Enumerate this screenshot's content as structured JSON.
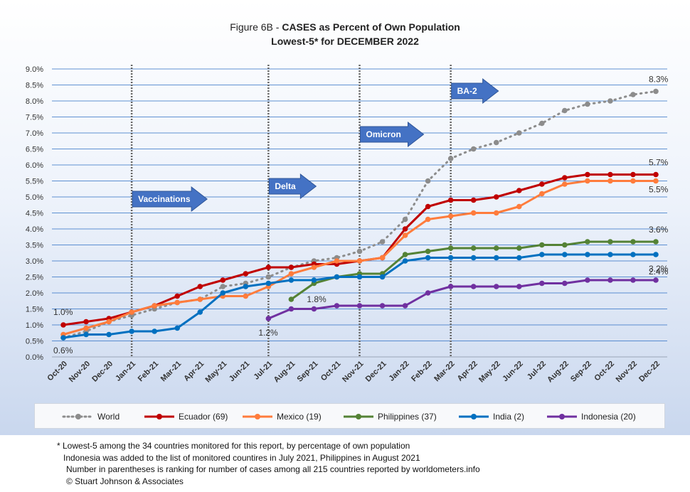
{
  "chart_data": {
    "type": "line",
    "title_prefix": "Figure 6B - ",
    "title_bold": "CASES as Percent of Own Population",
    "subtitle": "Lowest-5* for DECEMBER 2022",
    "categories": [
      "Oct-20",
      "Nov-20",
      "Dec-20",
      "Jan-21",
      "Feb-21",
      "Mar-21",
      "Apr-21",
      "May-21",
      "Jun-21",
      "Jul-21",
      "Aug-21",
      "Sep-21",
      "Oct-21",
      "Nov-21",
      "Dec-21",
      "Jan-22",
      "Feb-22",
      "Mar-22",
      "Apr-22",
      "May-22",
      "Jun-22",
      "Jul-22",
      "Aug-22",
      "Sep-22",
      "Oct-22",
      "Nov-22",
      "Dec-22"
    ],
    "ylim": [
      0,
      9
    ],
    "y_ticks": [
      "0.0%",
      "0.5%",
      "1.0%",
      "1.5%",
      "2.0%",
      "2.5%",
      "3.0%",
      "3.5%",
      "4.0%",
      "4.5%",
      "5.0%",
      "5.5%",
      "6.0%",
      "6.5%",
      "7.0%",
      "7.5%",
      "8.0%",
      "8.5%",
      "9.0%"
    ],
    "grid": true,
    "legend_position": "bottom",
    "series": [
      {
        "name": "World",
        "color": "#8c8c8c",
        "style": "dotted",
        "values": [
          0.6,
          0.8,
          1.1,
          1.3,
          1.5,
          1.7,
          1.8,
          2.2,
          2.3,
          2.5,
          2.8,
          3.0,
          3.1,
          3.3,
          3.6,
          4.3,
          5.5,
          6.2,
          6.5,
          6.7,
          7.0,
          7.3,
          7.7,
          7.9,
          8.0,
          8.2,
          8.3
        ]
      },
      {
        "name": "Ecuador (69)",
        "color": "#c00000",
        "style": "solid",
        "values": [
          1.0,
          1.1,
          1.2,
          1.4,
          1.6,
          1.9,
          2.2,
          2.4,
          2.6,
          2.8,
          2.8,
          2.9,
          2.9,
          3.0,
          3.1,
          4.0,
          4.7,
          4.9,
          4.9,
          5.0,
          5.2,
          5.4,
          5.6,
          5.7,
          5.7,
          5.7,
          5.7
        ]
      },
      {
        "name": "Mexico (19)",
        "color": "#ff7c3c",
        "style": "solid",
        "values": [
          0.7,
          0.9,
          1.1,
          1.4,
          1.6,
          1.7,
          1.8,
          1.9,
          1.9,
          2.2,
          2.6,
          2.8,
          3.0,
          3.0,
          3.1,
          3.8,
          4.3,
          4.4,
          4.5,
          4.5,
          4.7,
          5.1,
          5.4,
          5.5,
          5.5,
          5.5,
          5.5
        ]
      },
      {
        "name": "Philippines (37)",
        "color": "#548235",
        "style": "solid",
        "values": [
          null,
          null,
          null,
          null,
          null,
          null,
          null,
          null,
          null,
          null,
          1.8,
          2.3,
          2.5,
          2.6,
          2.6,
          3.2,
          3.3,
          3.4,
          3.4,
          3.4,
          3.4,
          3.5,
          3.5,
          3.6,
          3.6,
          3.6,
          3.6
        ]
      },
      {
        "name": "India (2)",
        "color": "#0070c0",
        "style": "solid",
        "values": [
          0.6,
          0.7,
          0.7,
          0.8,
          0.8,
          0.9,
          1.4,
          2.0,
          2.2,
          2.3,
          2.4,
          2.4,
          2.5,
          2.5,
          2.5,
          3.0,
          3.1,
          3.1,
          3.1,
          3.1,
          3.1,
          3.2,
          3.2,
          3.2,
          3.2,
          3.2,
          3.2
        ]
      },
      {
        "name": "Indonesia (20)",
        "color": "#7030a0",
        "style": "solid",
        "values": [
          null,
          null,
          null,
          null,
          null,
          null,
          null,
          null,
          null,
          1.2,
          1.5,
          1.5,
          1.6,
          1.6,
          1.6,
          1.6,
          2.0,
          2.2,
          2.2,
          2.2,
          2.2,
          2.3,
          2.3,
          2.4,
          2.4,
          2.4,
          2.4
        ]
      }
    ],
    "data_labels": [
      {
        "text": "8.3%",
        "index": 26,
        "value": 8.3
      },
      {
        "text": "5.7%",
        "index": 26,
        "value": 5.7
      },
      {
        "text": "5.5%",
        "index": 26,
        "value": 5.5
      },
      {
        "text": "3.6%",
        "index": 26,
        "value": 3.6
      },
      {
        "text": "3.2%",
        "index": 26,
        "value": 3.2
      },
      {
        "text": "2.4%",
        "index": 26,
        "value": 2.4
      },
      {
        "text": "1.0%",
        "index": 0,
        "value": 1.0
      },
      {
        "text": "0.6%",
        "index": 0,
        "value": 0.6
      },
      {
        "text": "1.2%",
        "index": 9,
        "value": 1.2
      },
      {
        "text": "1.8%",
        "index": 10,
        "value": 1.8
      }
    ],
    "annotations": [
      {
        "text": "Vaccinations",
        "index": 3
      },
      {
        "text": "Delta",
        "index": 9
      },
      {
        "text": "Omicron",
        "index": 13
      },
      {
        "text": "BA-2",
        "index": 17
      }
    ]
  },
  "footnotes": [
    "* Lowest-5 among the 34 countries monitored for this report, by percentage of own population",
    "Indonesia was added to the list of monitored countires in July 2021, Philippines in August 2021",
    "Number in parentheses is ranking for number of cases among all 215 countries reported by worldometers.info",
    "© Stuart Johnson & Associates"
  ]
}
